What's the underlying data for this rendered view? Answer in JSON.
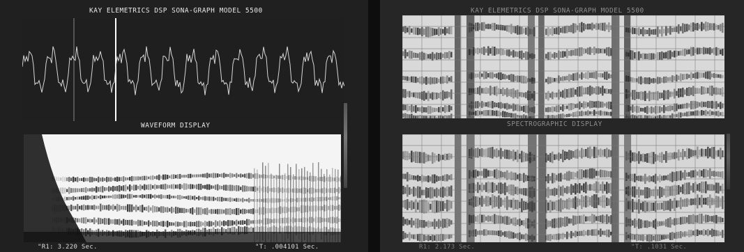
{
  "left_screen": {
    "title": "KAY ELEMETRICS DSP SONA-GRAPH MODEL 5500",
    "waveform_label": "WAVEFORM DISPLAY",
    "status_r1": "\"R1: 3.220 Sec.",
    "status_t": "\"T: .004101 Sec."
  },
  "right_screen": {
    "title": "KAY ELEMETRICS DSP SONA-GRAPH MODEL 5500",
    "spectro_label": "SPECTROGRAPHIC DISPLAY",
    "status_r1": "R1: 2.173 Sec.",
    "status_t": "\"T: .1031 Sec."
  },
  "colors": {
    "screen_bg": "#202020",
    "trace": "#d8d8d8",
    "spectrogram_bg": "#f4f4f4",
    "spectrogram_dark": "#141414",
    "grid": "#6a6a6a"
  }
}
